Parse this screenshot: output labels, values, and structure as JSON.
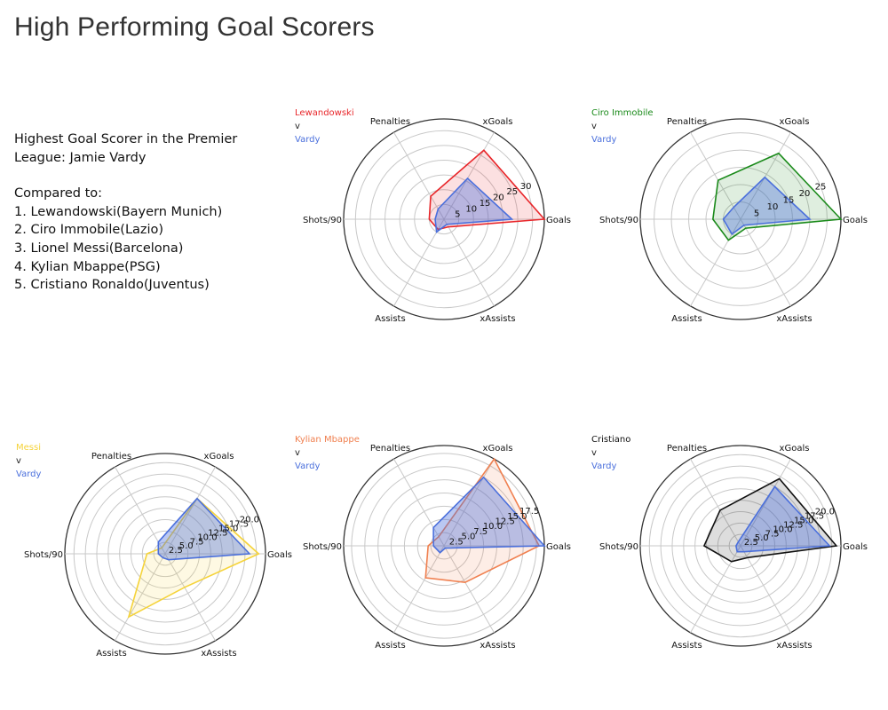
{
  "title": "High Performing Goal Scorers",
  "description": {
    "headline": [
      "Highest Goal Scorer in the Premier",
      "League: Jamie Vardy"
    ],
    "compared_label": "Compared to:",
    "comparisons": [
      "1. Lewandowski(Bayern Munich)",
      "2. Ciro Immobile(Lazio)",
      "3. Lionel Messi(Barcelona)",
      "4. Kylian Mbappe(PSG)",
      "5. Cristiano Ronaldo(Juventus)"
    ]
  },
  "colors": {
    "vardy": "#4a6fdc",
    "lewandowski": "#e8262a",
    "immobile": "#1a8a1a",
    "messi": "#f5d33a",
    "mbappe": "#f08050",
    "ronaldo": "#111111",
    "grid": "#c8c8c8",
    "frame": "#333333"
  },
  "chart_data": [
    {
      "type": "radar",
      "legend": {
        "player": "Lewandowski",
        "vs": "v",
        "base": "Vardy"
      },
      "player_color": "#e8262a",
      "base_color": "#4a6fdc",
      "axes": [
        "Goals",
        "xGoals",
        "Penalties",
        "Shots/90",
        "Assists",
        "xAssists"
      ],
      "rmax": 34,
      "gridlines": [
        5,
        10,
        15,
        20,
        25,
        30,
        34
      ],
      "tick_labels": [
        "5",
        "10",
        "15",
        "20",
        "25",
        "30"
      ],
      "series": [
        {
          "name": "Lewandowski",
          "values": [
            34,
            27,
            9,
            5,
            4,
            3
          ]
        },
        {
          "name": "Vardy",
          "values": [
            23,
            16,
            4,
            3,
            5,
            2
          ]
        }
      ]
    },
    {
      "type": "radar",
      "legend": {
        "player": "Ciro Immobile",
        "vs": "v",
        "base": "Vardy"
      },
      "player_color": "#1a8a1a",
      "base_color": "#4a6fdc",
      "axes": [
        "Goals",
        "xGoals",
        "Penalties",
        "Shots/90",
        "Assists",
        "xAssists"
      ],
      "rmax": 29,
      "gridlines": [
        5,
        10,
        15,
        20,
        25,
        29
      ],
      "tick_labels": [
        "5",
        "10",
        "15",
        "20",
        "25"
      ],
      "series": [
        {
          "name": "Ciro Immobile",
          "values": [
            29,
            22,
            13,
            8,
            7,
            3
          ]
        },
        {
          "name": "Vardy",
          "values": [
            20,
            14,
            4,
            5,
            5,
            2
          ]
        }
      ]
    },
    {
      "type": "radar",
      "legend": {
        "player": "Messi",
        "vs": "v",
        "base": "Vardy"
      },
      "player_color": "#f5d33a",
      "base_color": "#4a6fdc",
      "axes": [
        "Goals",
        "xGoals",
        "Penalties",
        "Shots/90",
        "Assists",
        "xAssists"
      ],
      "rmax": 22,
      "gridlines": [
        2.5,
        5.0,
        7.5,
        10.0,
        12.5,
        15.0,
        17.5,
        20.0,
        22
      ],
      "tick_labels": [
        "2.5",
        "5.0",
        "7.5",
        "10.0",
        "12.5",
        "15.0",
        "17.5",
        "20.0"
      ],
      "series": [
        {
          "name": "Messi",
          "values": [
            20.5,
            14,
            1.5,
            4,
            16,
            8.5
          ]
        },
        {
          "name": "Vardy",
          "values": [
            18.5,
            14,
            3,
            1.5,
            1,
            1.5
          ]
        }
      ]
    },
    {
      "type": "radar",
      "legend": {
        "player": "Kylian Mbappe",
        "vs": "v",
        "base": "Vardy"
      },
      "player_color": "#f08050",
      "base_color": "#4a6fdc",
      "axes": [
        "Goals",
        "xGoals",
        "Penalties",
        "Shots/90",
        "Assists",
        "xAssists"
      ],
      "rmax": 19,
      "gridlines": [
        2.5,
        5.0,
        7.5,
        10.0,
        12.5,
        15.0,
        17.5,
        19
      ],
      "tick_labels": [
        "2.5",
        "5.0",
        "7.5",
        "10.0",
        "12.5",
        "15.0",
        "17.5"
      ],
      "series": [
        {
          "name": "Kylian Mbappe",
          "values": [
            18,
            19,
            2,
            3,
            7,
            8
          ]
        },
        {
          "name": "Vardy",
          "values": [
            19,
            15,
            4,
            2,
            1.5,
            0.5
          ]
        }
      ]
    },
    {
      "type": "radar",
      "legend": {
        "player": "Cristiano",
        "vs": "v",
        "base": "Vardy"
      },
      "player_color": "#111111",
      "base_color": "#4a6fdc",
      "axes": [
        "Goals",
        "xGoals",
        "Penalties",
        "Shots/90",
        "Assists",
        "xAssists"
      ],
      "rmax": 22,
      "gridlines": [
        2.5,
        5.0,
        7.5,
        10.0,
        12.5,
        15.0,
        17.5,
        20.0,
        22
      ],
      "tick_labels": [
        "2.5",
        "5.0",
        "7.5",
        "10.0",
        "12.5",
        "15.0",
        "17.5",
        "20.0"
      ],
      "series": [
        {
          "name": "Cristiano",
          "values": [
            21,
            17,
            9,
            8,
            4,
            3
          ]
        },
        {
          "name": "Vardy",
          "values": [
            19.5,
            15,
            1,
            1,
            1.5,
            1.5
          ]
        }
      ]
    }
  ]
}
